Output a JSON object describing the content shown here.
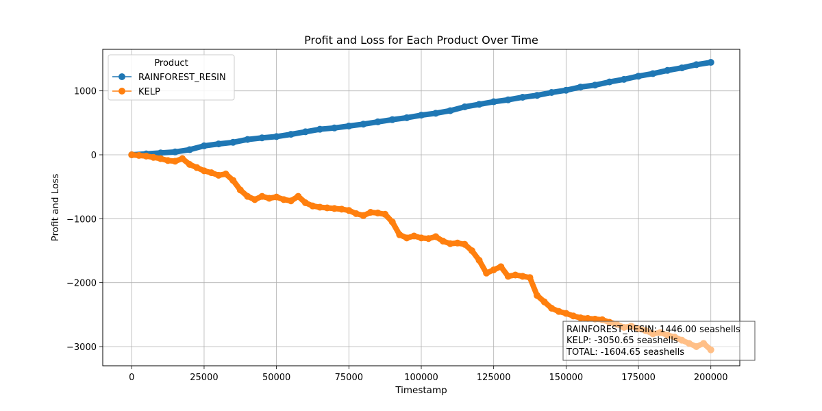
{
  "chart_data": {
    "type": "line",
    "title": "Profit and Loss for Each Product Over Time",
    "xlabel": "Timestamp",
    "ylabel": "Profit and Loss",
    "xlim": [
      -10000,
      210000
    ],
    "ylim": [
      -3300,
      1650
    ],
    "xticks": [
      0,
      25000,
      50000,
      75000,
      100000,
      125000,
      150000,
      175000,
      200000
    ],
    "yticks": [
      -3000,
      -2000,
      -1000,
      0,
      1000
    ],
    "ytick_labels": [
      "−3000",
      "−2000",
      "−1000",
      "0",
      "1000"
    ],
    "grid": true,
    "legend": {
      "title": "Product",
      "placement": "top-left"
    },
    "series": [
      {
        "name": "RAINFOREST_RESIN",
        "color": "#1f77b4",
        "x": [
          0,
          5000,
          10000,
          15000,
          20000,
          25000,
          30000,
          35000,
          40000,
          45000,
          50000,
          55000,
          60000,
          65000,
          70000,
          75000,
          80000,
          85000,
          90000,
          95000,
          100000,
          105000,
          110000,
          115000,
          120000,
          125000,
          130000,
          135000,
          140000,
          145000,
          150000,
          155000,
          160000,
          165000,
          170000,
          175000,
          180000,
          185000,
          190000,
          195000,
          200000
        ],
        "y": [
          0,
          15,
          30,
          45,
          80,
          140,
          170,
          195,
          240,
          265,
          285,
          320,
          360,
          400,
          420,
          450,
          480,
          515,
          550,
          580,
          620,
          650,
          690,
          750,
          790,
          830,
          860,
          900,
          930,
          975,
          1010,
          1060,
          1090,
          1140,
          1180,
          1230,
          1270,
          1320,
          1360,
          1410,
          1446
        ]
      },
      {
        "name": "KELP",
        "color": "#ff7f0e",
        "x": [
          0,
          2500,
          5000,
          7500,
          10000,
          12500,
          15000,
          17500,
          20000,
          22500,
          25000,
          27500,
          30000,
          32500,
          35000,
          37500,
          40000,
          42500,
          45000,
          47500,
          50000,
          52500,
          55000,
          57500,
          60000,
          62500,
          65000,
          67500,
          70000,
          72500,
          75000,
          77500,
          80000,
          82500,
          85000,
          87500,
          90000,
          92500,
          95000,
          97500,
          100000,
          102500,
          105000,
          107500,
          110000,
          112500,
          115000,
          117500,
          120000,
          122500,
          125000,
          127500,
          130000,
          132500,
          135000,
          137500,
          140000,
          142500,
          145000,
          147500,
          150000,
          152500,
          155000,
          157500,
          160000,
          162500,
          165000,
          167500,
          170000,
          172500,
          175000,
          177500,
          180000,
          182500,
          185000,
          187500,
          190000,
          192500,
          195000,
          197500,
          200000
        ],
        "y": [
          0,
          -10,
          -20,
          -40,
          -60,
          -90,
          -100,
          -60,
          -150,
          -200,
          -250,
          -280,
          -320,
          -300,
          -400,
          -550,
          -650,
          -700,
          -650,
          -680,
          -660,
          -700,
          -720,
          -650,
          -750,
          -800,
          -820,
          -830,
          -840,
          -850,
          -870,
          -920,
          -950,
          -900,
          -910,
          -930,
          -1050,
          -1250,
          -1300,
          -1270,
          -1300,
          -1310,
          -1280,
          -1350,
          -1390,
          -1380,
          -1400,
          -1500,
          -1650,
          -1850,
          -1800,
          -1750,
          -1900,
          -1880,
          -1900,
          -1920,
          -2200,
          -2300,
          -2400,
          -2450,
          -2480,
          -2520,
          -2550,
          -2560,
          -2570,
          -2580,
          -2620,
          -2650,
          -2700,
          -2680,
          -2720,
          -2750,
          -2800,
          -2780,
          -2820,
          -2850,
          -2900,
          -2950,
          -3000,
          -2950,
          -3050.65
        ]
      }
    ],
    "annotation": {
      "placement": "bottom-right",
      "lines": [
        "RAINFOREST_RESIN: 1446.00 seashells",
        "KELP: -3050.65 seashells",
        "TOTAL: -1604.65 seashells"
      ]
    }
  }
}
